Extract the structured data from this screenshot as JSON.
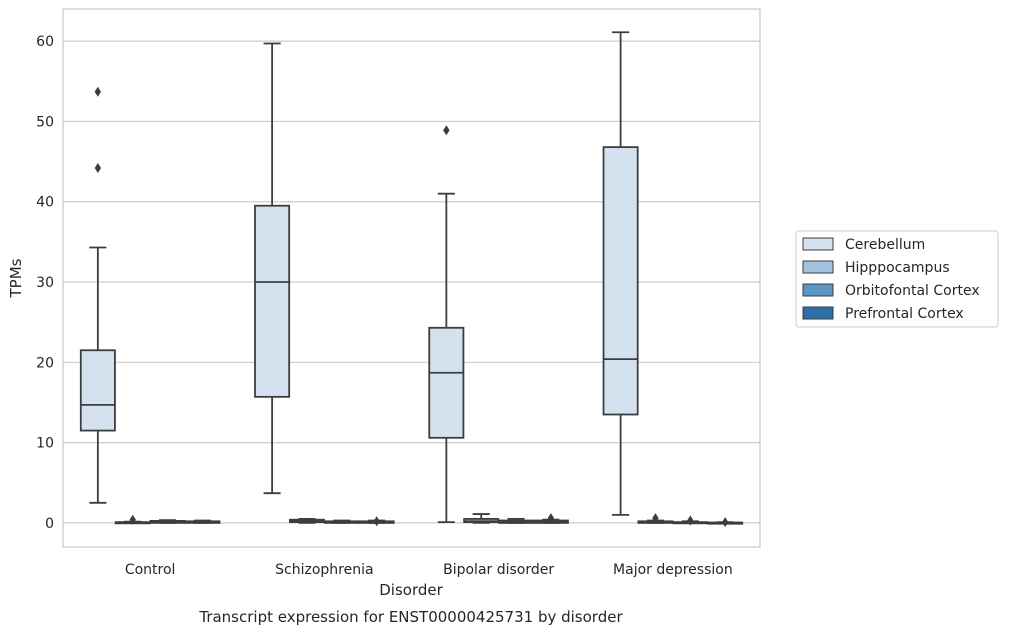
{
  "caption": "Transcript expression for ENST00000425731 by disorder",
  "chart_data": {
    "type": "boxplot",
    "xlabel": "Disorder",
    "ylabel": "TPMs",
    "ylim": [
      -3,
      64
    ],
    "yticks": [
      0,
      10,
      20,
      30,
      40,
      50,
      60
    ],
    "grid": "horizontal",
    "legend_position": "right",
    "categories": [
      "Control",
      "Schizophrenia",
      "Bipolar disorder",
      "Major depression"
    ],
    "series": [
      {
        "name": "Cerebellum",
        "color": "#d4e2ef",
        "boxes": [
          {
            "whisker_low": 2.5,
            "q1": 11.5,
            "median": 14.7,
            "q3": 21.5,
            "whisker_high": 34.3,
            "outliers": [
              44.2,
              53.7
            ]
          },
          {
            "whisker_low": 3.7,
            "q1": 15.7,
            "median": 30.0,
            "q3": 39.5,
            "whisker_high": 59.7,
            "outliers": []
          },
          {
            "whisker_low": 0.1,
            "q1": 10.6,
            "median": 18.7,
            "q3": 24.3,
            "whisker_high": 41.0,
            "outliers": [
              48.9
            ]
          },
          {
            "whisker_low": 1.0,
            "q1": 13.5,
            "median": 20.4,
            "q3": 46.8,
            "whisker_high": 61.1,
            "outliers": []
          }
        ]
      },
      {
        "name": "Hipppocampus",
        "color": "#a3c3df",
        "boxes": [
          {
            "whisker_low": 0.0,
            "q1": 0.0,
            "median": 0.05,
            "q3": 0.1,
            "whisker_high": 0.15,
            "outliers": [
              0.4
            ]
          },
          {
            "whisker_low": 0.0,
            "q1": 0.1,
            "median": 0.2,
            "q3": 0.4,
            "whisker_high": 0.5,
            "outliers": []
          },
          {
            "whisker_low": 0.0,
            "q1": 0.1,
            "median": 0.2,
            "q3": 0.5,
            "whisker_high": 1.1,
            "outliers": []
          },
          {
            "whisker_low": 0.0,
            "q1": 0.0,
            "median": 0.1,
            "q3": 0.2,
            "whisker_high": 0.3,
            "outliers": [
              0.6
            ]
          }
        ]
      },
      {
        "name": "Orbitofontal Cortex",
        "color": "#5a97c5",
        "boxes": [
          {
            "whisker_low": 0.0,
            "q1": 0.0,
            "median": 0.1,
            "q3": 0.25,
            "whisker_high": 0.35,
            "outliers": []
          },
          {
            "whisker_low": 0.0,
            "q1": 0.0,
            "median": 0.1,
            "q3": 0.2,
            "whisker_high": 0.3,
            "outliers": []
          },
          {
            "whisker_low": 0.0,
            "q1": 0.0,
            "median": 0.1,
            "q3": 0.3,
            "whisker_high": 0.5,
            "outliers": []
          },
          {
            "whisker_low": 0.0,
            "q1": 0.0,
            "median": 0.05,
            "q3": 0.1,
            "whisker_high": 0.2,
            "outliers": [
              0.3
            ]
          }
        ]
      },
      {
        "name": "Prefrontal Cortex",
        "color": "#2c6ea8",
        "boxes": [
          {
            "whisker_low": 0.0,
            "q1": 0.0,
            "median": 0.1,
            "q3": 0.2,
            "whisker_high": 0.3,
            "outliers": []
          },
          {
            "whisker_low": 0.0,
            "q1": 0.0,
            "median": 0.1,
            "q3": 0.2,
            "whisker_high": 0.3,
            "outliers": [
              0.2
            ]
          },
          {
            "whisker_low": 0.0,
            "q1": 0.0,
            "median": 0.1,
            "q3": 0.3,
            "whisker_high": 0.4,
            "outliers": [
              0.6
            ]
          },
          {
            "whisker_low": 0.0,
            "q1": 0.0,
            "median": 0.0,
            "q3": 0.05,
            "whisker_high": 0.1,
            "outliers": [
              0.1
            ]
          }
        ]
      }
    ]
  }
}
